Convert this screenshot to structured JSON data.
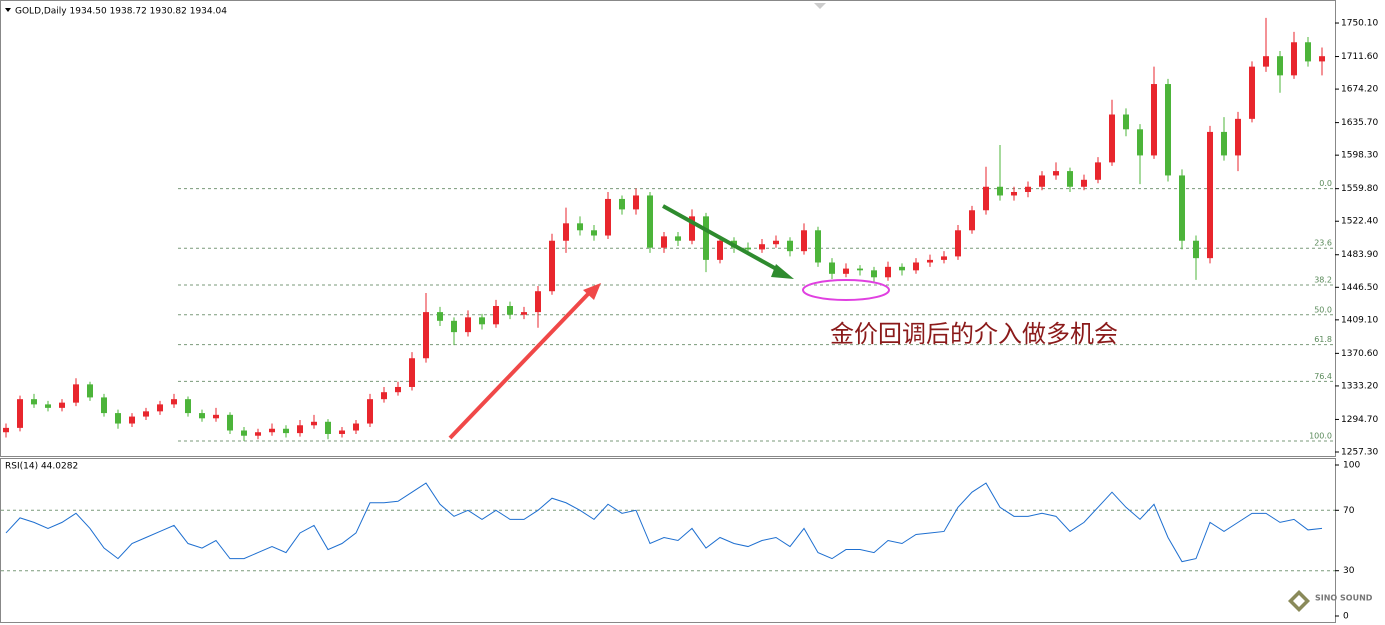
{
  "chart_data": {
    "type": "candlestick",
    "title": "GOLD,Daily  1934.50 1938.72 1930.82 1934.04",
    "up_color": "#e8262d",
    "down_color": "#4cb43a",
    "ylim": [
      1252.7,
      1773.1
    ],
    "yticks": [
      {
        "value": 1750.1,
        "label": "1750.10"
      },
      {
        "value": 1711.6,
        "label": "1711.60"
      },
      {
        "value": 1674.2,
        "label": "1674.20"
      },
      {
        "value": 1635.7,
        "label": "1635.70"
      },
      {
        "value": 1598.3,
        "label": "1598.30"
      },
      {
        "value": 1559.8,
        "label": "1559.80"
      },
      {
        "value": 1522.4,
        "label": "1522.40"
      },
      {
        "value": 1483.9,
        "label": "1483.90"
      },
      {
        "value": 1446.5,
        "label": "1446.50"
      },
      {
        "value": 1409.1,
        "label": "1409.10"
      },
      {
        "value": 1370.6,
        "label": "1370.60"
      },
      {
        "value": 1333.2,
        "label": "1333.20"
      },
      {
        "value": 1294.7,
        "label": "1294.70"
      },
      {
        "value": 1257.3,
        "label": "1257.30"
      }
    ],
    "fib_levels": [
      {
        "ratio": "0.0",
        "price": 1559.8
      },
      {
        "ratio": "23.6",
        "price": 1491.4
      },
      {
        "ratio": "38.2",
        "price": 1449.1
      },
      {
        "ratio": "50.0",
        "price": 1414.9
      },
      {
        "ratio": "61.8",
        "price": 1380.7
      },
      {
        "ratio": "76.4",
        "price": 1338.4
      },
      {
        "ratio": "100.0",
        "price": 1270.0
      }
    ],
    "annotation": "金价回调后的介入做多机会",
    "ohlc": [
      [
        1280,
        1290,
        1274,
        1285
      ],
      [
        1285,
        1322,
        1281,
        1318
      ],
      [
        1318,
        1324,
        1308,
        1312
      ],
      [
        1312,
        1316,
        1304,
        1308
      ],
      [
        1308,
        1318,
        1304,
        1314
      ],
      [
        1314,
        1342,
        1310,
        1335
      ],
      [
        1335,
        1338,
        1316,
        1320
      ],
      [
        1320,
        1324,
        1298,
        1302
      ],
      [
        1302,
        1306,
        1284,
        1290
      ],
      [
        1290,
        1302,
        1286,
        1298
      ],
      [
        1298,
        1308,
        1294,
        1304
      ],
      [
        1304,
        1316,
        1300,
        1312
      ],
      [
        1312,
        1324,
        1308,
        1318
      ],
      [
        1318,
        1321,
        1298,
        1302
      ],
      [
        1302,
        1306,
        1292,
        1296
      ],
      [
        1296,
        1308,
        1292,
        1300
      ],
      [
        1300,
        1303,
        1278,
        1282
      ],
      [
        1282,
        1286,
        1270,
        1276
      ],
      [
        1276,
        1284,
        1272,
        1280
      ],
      [
        1280,
        1290,
        1276,
        1284
      ],
      [
        1284,
        1288,
        1274,
        1279
      ],
      [
        1279,
        1294,
        1275,
        1288
      ],
      [
        1288,
        1300,
        1284,
        1292
      ],
      [
        1292,
        1295,
        1272,
        1278
      ],
      [
        1278,
        1286,
        1274,
        1282
      ],
      [
        1282,
        1294,
        1278,
        1290
      ],
      [
        1290,
        1324,
        1286,
        1318
      ],
      [
        1318,
        1332,
        1314,
        1326
      ],
      [
        1326,
        1338,
        1322,
        1332
      ],
      [
        1332,
        1372,
        1328,
        1365
      ],
      [
        1365,
        1440,
        1360,
        1418
      ],
      [
        1418,
        1424,
        1402,
        1408
      ],
      [
        1408,
        1412,
        1380,
        1395
      ],
      [
        1395,
        1420,
        1390,
        1412
      ],
      [
        1412,
        1416,
        1398,
        1404
      ],
      [
        1404,
        1432,
        1400,
        1425
      ],
      [
        1425,
        1430,
        1410,
        1415
      ],
      [
        1415,
        1424,
        1410,
        1418
      ],
      [
        1418,
        1448,
        1400,
        1442
      ],
      [
        1442,
        1508,
        1438,
        1500
      ],
      [
        1500,
        1538,
        1486,
        1520
      ],
      [
        1520,
        1528,
        1506,
        1512
      ],
      [
        1512,
        1518,
        1500,
        1506
      ],
      [
        1506,
        1556,
        1502,
        1548
      ],
      [
        1548,
        1552,
        1530,
        1536
      ],
      [
        1536,
        1560,
        1530,
        1552
      ],
      [
        1552,
        1556,
        1486,
        1492
      ],
      [
        1492,
        1510,
        1486,
        1505
      ],
      [
        1505,
        1510,
        1494,
        1500
      ],
      [
        1500,
        1536,
        1496,
        1528
      ],
      [
        1528,
        1532,
        1464,
        1478
      ],
      [
        1478,
        1506,
        1474,
        1500
      ],
      [
        1500,
        1504,
        1486,
        1492
      ],
      [
        1492,
        1498,
        1484,
        1490
      ],
      [
        1490,
        1502,
        1486,
        1496
      ],
      [
        1496,
        1506,
        1492,
        1500
      ],
      [
        1500,
        1504,
        1482,
        1488
      ],
      [
        1488,
        1520,
        1484,
        1512
      ],
      [
        1512,
        1516,
        1470,
        1475
      ],
      [
        1475,
        1480,
        1456,
        1462
      ],
      [
        1462,
        1474,
        1458,
        1468
      ],
      [
        1468,
        1472,
        1460,
        1466
      ],
      [
        1466,
        1470,
        1452,
        1458
      ],
      [
        1458,
        1476,
        1454,
        1470
      ],
      [
        1470,
        1474,
        1460,
        1466
      ],
      [
        1466,
        1480,
        1462,
        1475
      ],
      [
        1475,
        1484,
        1470,
        1478
      ],
      [
        1478,
        1488,
        1474,
        1482
      ],
      [
        1482,
        1518,
        1478,
        1512
      ],
      [
        1512,
        1540,
        1508,
        1535
      ],
      [
        1535,
        1585,
        1530,
        1562
      ],
      [
        1562,
        1610,
        1546,
        1552
      ],
      [
        1552,
        1562,
        1546,
        1556
      ],
      [
        1556,
        1568,
        1550,
        1562
      ],
      [
        1562,
        1580,
        1558,
        1575
      ],
      [
        1575,
        1590,
        1570,
        1580
      ],
      [
        1580,
        1584,
        1556,
        1562
      ],
      [
        1562,
        1576,
        1558,
        1570
      ],
      [
        1570,
        1596,
        1566,
        1590
      ],
      [
        1590,
        1662,
        1586,
        1645
      ],
      [
        1645,
        1652,
        1620,
        1628
      ],
      [
        1628,
        1634,
        1565,
        1598
      ],
      [
        1598,
        1700,
        1594,
        1680
      ],
      [
        1680,
        1686,
        1568,
        1575
      ],
      [
        1575,
        1582,
        1490,
        1500
      ],
      [
        1500,
        1506,
        1455,
        1480
      ],
      [
        1480,
        1632,
        1474,
        1625
      ],
      [
        1625,
        1642,
        1592,
        1598
      ],
      [
        1598,
        1648,
        1580,
        1640
      ],
      [
        1640,
        1706,
        1636,
        1700
      ],
      [
        1700,
        1756,
        1694,
        1712
      ],
      [
        1712,
        1718,
        1670,
        1690
      ],
      [
        1690,
        1740,
        1686,
        1728
      ],
      [
        1728,
        1734,
        1700,
        1706
      ],
      [
        1706,
        1722,
        1690,
        1712
      ]
    ],
    "rsi": {
      "label": "RSI(14) 44.0282",
      "color": "#1e6fd0",
      "ylim": [
        0,
        100
      ],
      "yticks": [
        100,
        70,
        30,
        0
      ],
      "levels": [
        70,
        30
      ],
      "values": [
        55,
        65,
        62,
        58,
        62,
        68,
        58,
        45,
        38,
        48,
        52,
        56,
        60,
        48,
        45,
        50,
        38,
        38,
        42,
        46,
        42,
        55,
        60,
        44,
        48,
        55,
        75,
        75,
        76,
        82,
        88,
        74,
        66,
        70,
        64,
        70,
        64,
        64,
        70,
        78,
        75,
        70,
        64,
        74,
        68,
        70,
        48,
        52,
        50,
        58,
        45,
        52,
        48,
        46,
        50,
        52,
        46,
        58,
        42,
        38,
        44,
        44,
        42,
        50,
        48,
        54,
        55,
        56,
        72,
        82,
        88,
        72,
        66,
        66,
        68,
        66,
        56,
        62,
        72,
        82,
        72,
        64,
        74,
        52,
        36,
        38,
        62,
        56,
        62,
        68,
        68,
        62,
        64,
        57,
        58
      ]
    },
    "watermark": "SINO SOUND"
  }
}
